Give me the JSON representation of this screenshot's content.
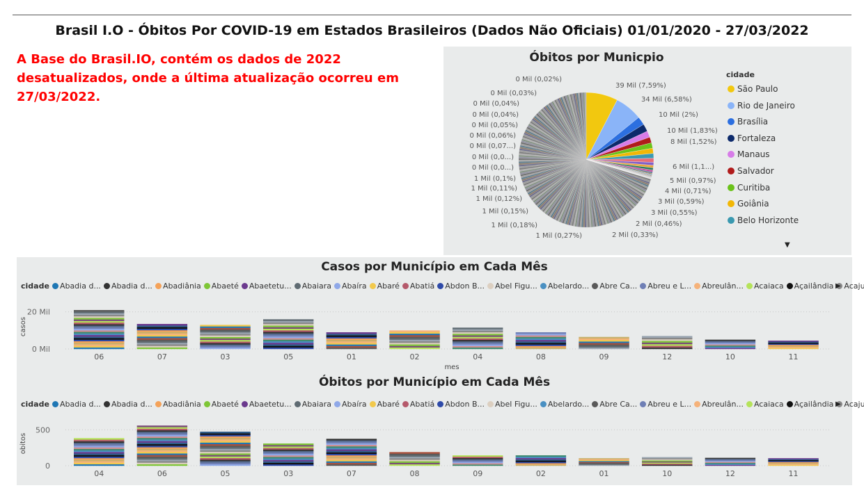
{
  "header": {
    "title": "Brasil I.O - Óbitos Por COVID-19 em Estados Brasileiros (Dados Não Oficiais) 01/01/2020 - 27/03/2022",
    "note": "A Base do Brasil.IO, contém os dados de 2022 desatualizados, onde a última atualização ocorreu em 27/03/2022."
  },
  "pie": {
    "title": "Óbitos por Municpio",
    "legend_title": "cidade",
    "legend": [
      {
        "name": "São Paulo",
        "color": "#f2c80f"
      },
      {
        "name": "Rio de Janeiro",
        "color": "#8ab4f8"
      },
      {
        "name": "Brasília",
        "color": "#2c6fe0"
      },
      {
        "name": "Fortaleza",
        "color": "#0d2a6b"
      },
      {
        "name": "Manaus",
        "color": "#d77ce8"
      },
      {
        "name": "Salvador",
        "color": "#b01b1b"
      },
      {
        "name": "Curitiba",
        "color": "#6bc21a"
      },
      {
        "name": "Goiânia",
        "color": "#f2b705"
      },
      {
        "name": "Belo Horizonte",
        "color": "#3a99b0"
      }
    ],
    "scroll_icon": "caret-down-icon"
  },
  "casos": {
    "title": "Casos por Município em Cada Mês",
    "legend_label": "cidade",
    "legend": [
      {
        "name": "Abadia d...",
        "color": "#1f77b4"
      },
      {
        "name": "Abadia d...",
        "color": "#333333"
      },
      {
        "name": "Abadiânia",
        "color": "#f4a259"
      },
      {
        "name": "Abaeté",
        "color": "#7ec636"
      },
      {
        "name": "Abaetetu...",
        "color": "#6b3a8e"
      },
      {
        "name": "Abaiara",
        "color": "#5f6b72"
      },
      {
        "name": "Abaíra",
        "color": "#8fa8e8"
      },
      {
        "name": "Abaré",
        "color": "#f2c94c"
      },
      {
        "name": "Abatiá",
        "color": "#b5596b"
      },
      {
        "name": "Abdon B...",
        "color": "#2e4aa8"
      },
      {
        "name": "Abel Figu...",
        "color": "#dccfc0"
      },
      {
        "name": "Abelardo...",
        "color": "#4a90c2"
      },
      {
        "name": "Abre Ca...",
        "color": "#5a5a5a"
      },
      {
        "name": "Abreu e L...",
        "color": "#6f7fb5"
      },
      {
        "name": "Abreulân...",
        "color": "#f5b27a"
      },
      {
        "name": "Acaiaca",
        "color": "#b5e35a"
      },
      {
        "name": "Açailândia",
        "color": "#111111"
      },
      {
        "name": "Acajutiba",
        "color": "#888888"
      }
    ],
    "scroll_icon": "caret-right-icon",
    "ylabel": "casos",
    "xlabel": "mes"
  },
  "obitos": {
    "title": "Óbitos por Município em Cada Mês",
    "legend_label": "cidade",
    "ylabel": "obitos",
    "scroll_icon": "caret-right-icon"
  },
  "chart_data": [
    {
      "type": "pie",
      "title": "Óbitos por Municpio",
      "slices": [
        {
          "label": "39 Mil (7,59%)",
          "value": 7.59,
          "color": "#f2c80f"
        },
        {
          "label": "34 Mil (6,58%)",
          "value": 6.58,
          "color": "#8ab4f8"
        },
        {
          "label": "10 Mil (2%)",
          "value": 2.0,
          "color": "#2c6fe0"
        },
        {
          "label": "10 Mil (1,83%)",
          "value": 1.83,
          "color": "#0d2a6b"
        },
        {
          "label": "8 Mil (1,52%)",
          "value": 1.52,
          "color": "#d77ce8"
        },
        {
          "label": "",
          "value": 1.4,
          "color": "#b01b1b"
        },
        {
          "label": "",
          "value": 1.3,
          "color": "#6bc21a"
        },
        {
          "label": "",
          "value": 1.25,
          "color": "#f2b705"
        },
        {
          "label": "6 Mil (1,1...)",
          "value": 1.15,
          "color": "#3a99b0"
        },
        {
          "label": "5 Mil (0,97%)",
          "value": 0.97,
          "color": "#e66c7a"
        },
        {
          "label": "4 Mil (0,71%)",
          "value": 0.71,
          "color": "#7f5fc9"
        },
        {
          "label": "3 Mil (0,59%)",
          "value": 0.59,
          "color": "#e8a33a"
        },
        {
          "label": "3 Mil (0,55%)",
          "value": 0.55,
          "color": "#2f7d5c"
        },
        {
          "label": "2 Mil (0,46%)",
          "value": 0.46,
          "color": "#c24f9b"
        },
        {
          "label": "2 Mil (0,33%)",
          "value": 0.33,
          "color": "#4d6b8a"
        },
        {
          "label": "1 Mil (0,27%)",
          "value": 0.27,
          "color": "#9c8a5a"
        },
        {
          "label": "1 Mil (0,18%)",
          "value": 0.18,
          "color": "#5a9ed6"
        },
        {
          "label": "1 Mil (0,15%)",
          "value": 0.15,
          "color": "#a35d4a"
        },
        {
          "label": "1 Mil (0,12%)",
          "value": 0.12,
          "color": "#6e8f3a"
        },
        {
          "label": "1 Mil (0,11%)",
          "value": 0.11,
          "color": "#8a5aa8"
        },
        {
          "label": "1 Mil (0,1%)",
          "value": 0.1,
          "color": "#3a6ea8"
        },
        {
          "label": "0 Mil (0,0...)",
          "value": 0.09,
          "color": "#b58a3a"
        },
        {
          "label": "0 Mil (0,0...)",
          "value": 0.08,
          "color": "#5a8a7a"
        },
        {
          "label": "0 Mil (0,07...)",
          "value": 0.07,
          "color": "#9a6a8a"
        },
        {
          "label": "0 Mil (0,06%)",
          "value": 0.06,
          "color": "#7a7a9a"
        },
        {
          "label": "0 Mil (0,05%)",
          "value": 0.05,
          "color": "#8a9a7a"
        },
        {
          "label": "0 Mil (0,04%)",
          "value": 0.04,
          "color": "#9a8a7a"
        },
        {
          "label": "0 Mil (0,04%)",
          "value": 0.04,
          "color": "#7a8a9a"
        },
        {
          "label": "0 Mil (0,03%)",
          "value": 0.03,
          "color": "#8a8a8a"
        },
        {
          "label": "0 Mil (0,02%)",
          "value": 0.02,
          "color": "#9a9a9a"
        }
      ],
      "other_municipalities_pct": 72.02
    },
    {
      "type": "bar",
      "stacked": true,
      "title": "Casos por Município em Cada Mês",
      "xlabel": "mes",
      "ylabel": "casos",
      "categories": [
        "06",
        "07",
        "03",
        "05",
        "01",
        "02",
        "04",
        "08",
        "09",
        "12",
        "10",
        "11"
      ],
      "totals": [
        21000,
        13500,
        13000,
        16000,
        9000,
        10000,
        11500,
        9000,
        6500,
        7000,
        5000,
        4500
      ],
      "yticks": [
        "0 Mil",
        "20 Mil"
      ],
      "ylim": [
        0,
        24000
      ]
    },
    {
      "type": "bar",
      "stacked": true,
      "title": "Óbitos por Município em Cada Mês",
      "xlabel": "",
      "ylabel": "obitos",
      "categories": [
        "04",
        "06",
        "05",
        "03",
        "07",
        "08",
        "09",
        "02",
        "01",
        "10",
        "12",
        "11"
      ],
      "totals": [
        385,
        560,
        475,
        310,
        375,
        190,
        145,
        145,
        105,
        120,
        110,
        105
      ],
      "yticks": [
        "0",
        "500"
      ],
      "ylim": [
        0,
        620
      ]
    }
  ]
}
